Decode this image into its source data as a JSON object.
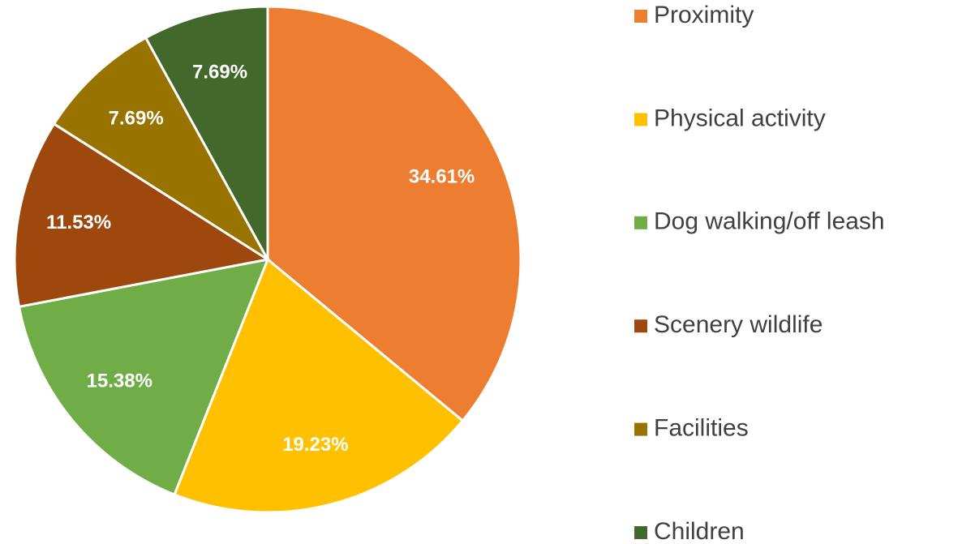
{
  "chart_data": {
    "type": "pie",
    "categories": [
      "Proximity",
      "Physical activity",
      "Dog walking/off leash",
      "Scenery wildlife",
      "Facilities",
      "Children"
    ],
    "values": [
      34.61,
      19.23,
      15.38,
      11.53,
      7.69,
      7.69
    ],
    "value_labels": [
      "34.61%",
      "19.23%",
      "15.38%",
      "11.53%",
      "7.69%",
      "7.69%"
    ],
    "colors": [
      "#ED7D31",
      "#FFC000",
      "#70AD47",
      "#9E480E",
      "#997300",
      "#43682B"
    ],
    "legend": "right"
  }
}
